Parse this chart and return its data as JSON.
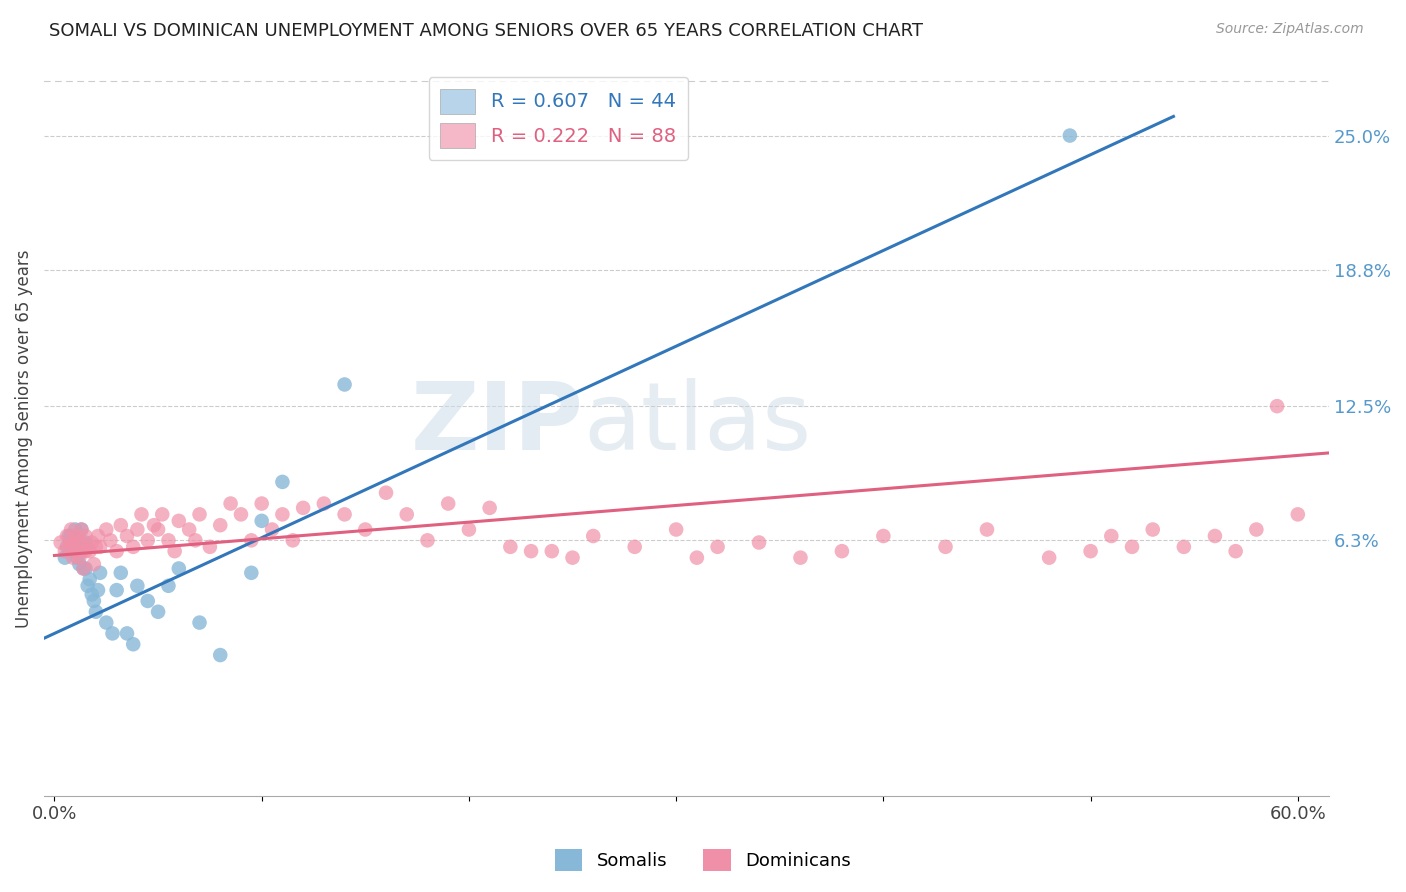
{
  "title": "SOMALI VS DOMINICAN UNEMPLOYMENT AMONG SENIORS OVER 65 YEARS CORRELATION CHART",
  "source": "Source: ZipAtlas.com",
  "ylabel": "Unemployment Among Seniors over 65 years",
  "xlim": [
    -0.005,
    0.615
  ],
  "ylim": [
    -0.055,
    0.275
  ],
  "xtick_positions": [
    0.0,
    0.1,
    0.2,
    0.3,
    0.4,
    0.5,
    0.6
  ],
  "xticklabels": [
    "0.0%",
    "",
    "",
    "",
    "",
    "",
    "60.0%"
  ],
  "ytick_right_values": [
    0.063,
    0.125,
    0.188,
    0.25
  ],
  "ytick_right_labels": [
    "6.3%",
    "12.5%",
    "18.8%",
    "25.0%"
  ],
  "legend_entries": [
    {
      "label": "R = 0.607   N = 44",
      "color": "#b8d4ea"
    },
    {
      "label": "R = 0.222   N = 88",
      "color": "#f4b8c8"
    }
  ],
  "somali_color": "#88b8d8",
  "dominican_color": "#f090a8",
  "trend_somali_color": "#3377bb",
  "trend_dominican_color": "#e06080",
  "watermark_zip": "ZIP",
  "watermark_atlas": "atlas",
  "somali_x": [
    0.005,
    0.006,
    0.007,
    0.008,
    0.008,
    0.009,
    0.009,
    0.01,
    0.01,
    0.011,
    0.011,
    0.012,
    0.012,
    0.013,
    0.013,
    0.014,
    0.014,
    0.015,
    0.015,
    0.016,
    0.017,
    0.018,
    0.019,
    0.02,
    0.021,
    0.022,
    0.025,
    0.028,
    0.03,
    0.032,
    0.035,
    0.038,
    0.04,
    0.045,
    0.05,
    0.055,
    0.06,
    0.07,
    0.08,
    0.095,
    0.1,
    0.11,
    0.14,
    0.49
  ],
  "somali_y": [
    0.055,
    0.06,
    0.065,
    0.06,
    0.065,
    0.062,
    0.058,
    0.062,
    0.068,
    0.055,
    0.06,
    0.052,
    0.063,
    0.058,
    0.068,
    0.05,
    0.06,
    0.05,
    0.062,
    0.042,
    0.045,
    0.038,
    0.035,
    0.03,
    0.04,
    0.048,
    0.025,
    0.02,
    0.04,
    0.048,
    0.02,
    0.015,
    0.042,
    0.035,
    0.03,
    0.042,
    0.05,
    0.025,
    0.01,
    0.048,
    0.072,
    0.09,
    0.135,
    0.25
  ],
  "dominican_x": [
    0.003,
    0.005,
    0.006,
    0.007,
    0.008,
    0.008,
    0.009,
    0.009,
    0.01,
    0.01,
    0.011,
    0.012,
    0.012,
    0.013,
    0.013,
    0.014,
    0.015,
    0.015,
    0.016,
    0.017,
    0.018,
    0.019,
    0.02,
    0.021,
    0.022,
    0.025,
    0.027,
    0.03,
    0.032,
    0.035,
    0.038,
    0.04,
    0.042,
    0.045,
    0.048,
    0.05,
    0.052,
    0.055,
    0.058,
    0.06,
    0.065,
    0.068,
    0.07,
    0.075,
    0.08,
    0.085,
    0.09,
    0.095,
    0.1,
    0.105,
    0.11,
    0.115,
    0.12,
    0.13,
    0.14,
    0.15,
    0.16,
    0.17,
    0.18,
    0.19,
    0.2,
    0.21,
    0.22,
    0.23,
    0.24,
    0.25,
    0.26,
    0.28,
    0.3,
    0.31,
    0.32,
    0.34,
    0.36,
    0.38,
    0.4,
    0.43,
    0.45,
    0.48,
    0.5,
    0.51,
    0.52,
    0.53,
    0.545,
    0.56,
    0.57,
    0.58,
    0.59,
    0.6
  ],
  "dominican_y": [
    0.062,
    0.058,
    0.065,
    0.06,
    0.062,
    0.068,
    0.055,
    0.06,
    0.058,
    0.065,
    0.062,
    0.055,
    0.063,
    0.058,
    0.068,
    0.05,
    0.058,
    0.065,
    0.06,
    0.058,
    0.062,
    0.052,
    0.06,
    0.065,
    0.06,
    0.068,
    0.063,
    0.058,
    0.07,
    0.065,
    0.06,
    0.068,
    0.075,
    0.063,
    0.07,
    0.068,
    0.075,
    0.063,
    0.058,
    0.072,
    0.068,
    0.063,
    0.075,
    0.06,
    0.07,
    0.08,
    0.075,
    0.063,
    0.08,
    0.068,
    0.075,
    0.063,
    0.078,
    0.08,
    0.075,
    0.068,
    0.085,
    0.075,
    0.063,
    0.08,
    0.068,
    0.078,
    0.06,
    0.058,
    0.058,
    0.055,
    0.065,
    0.06,
    0.068,
    0.055,
    0.06,
    0.062,
    0.055,
    0.058,
    0.065,
    0.06,
    0.068,
    0.055,
    0.058,
    0.065,
    0.06,
    0.068,
    0.06,
    0.065,
    0.058,
    0.068,
    0.125,
    0.075
  ]
}
